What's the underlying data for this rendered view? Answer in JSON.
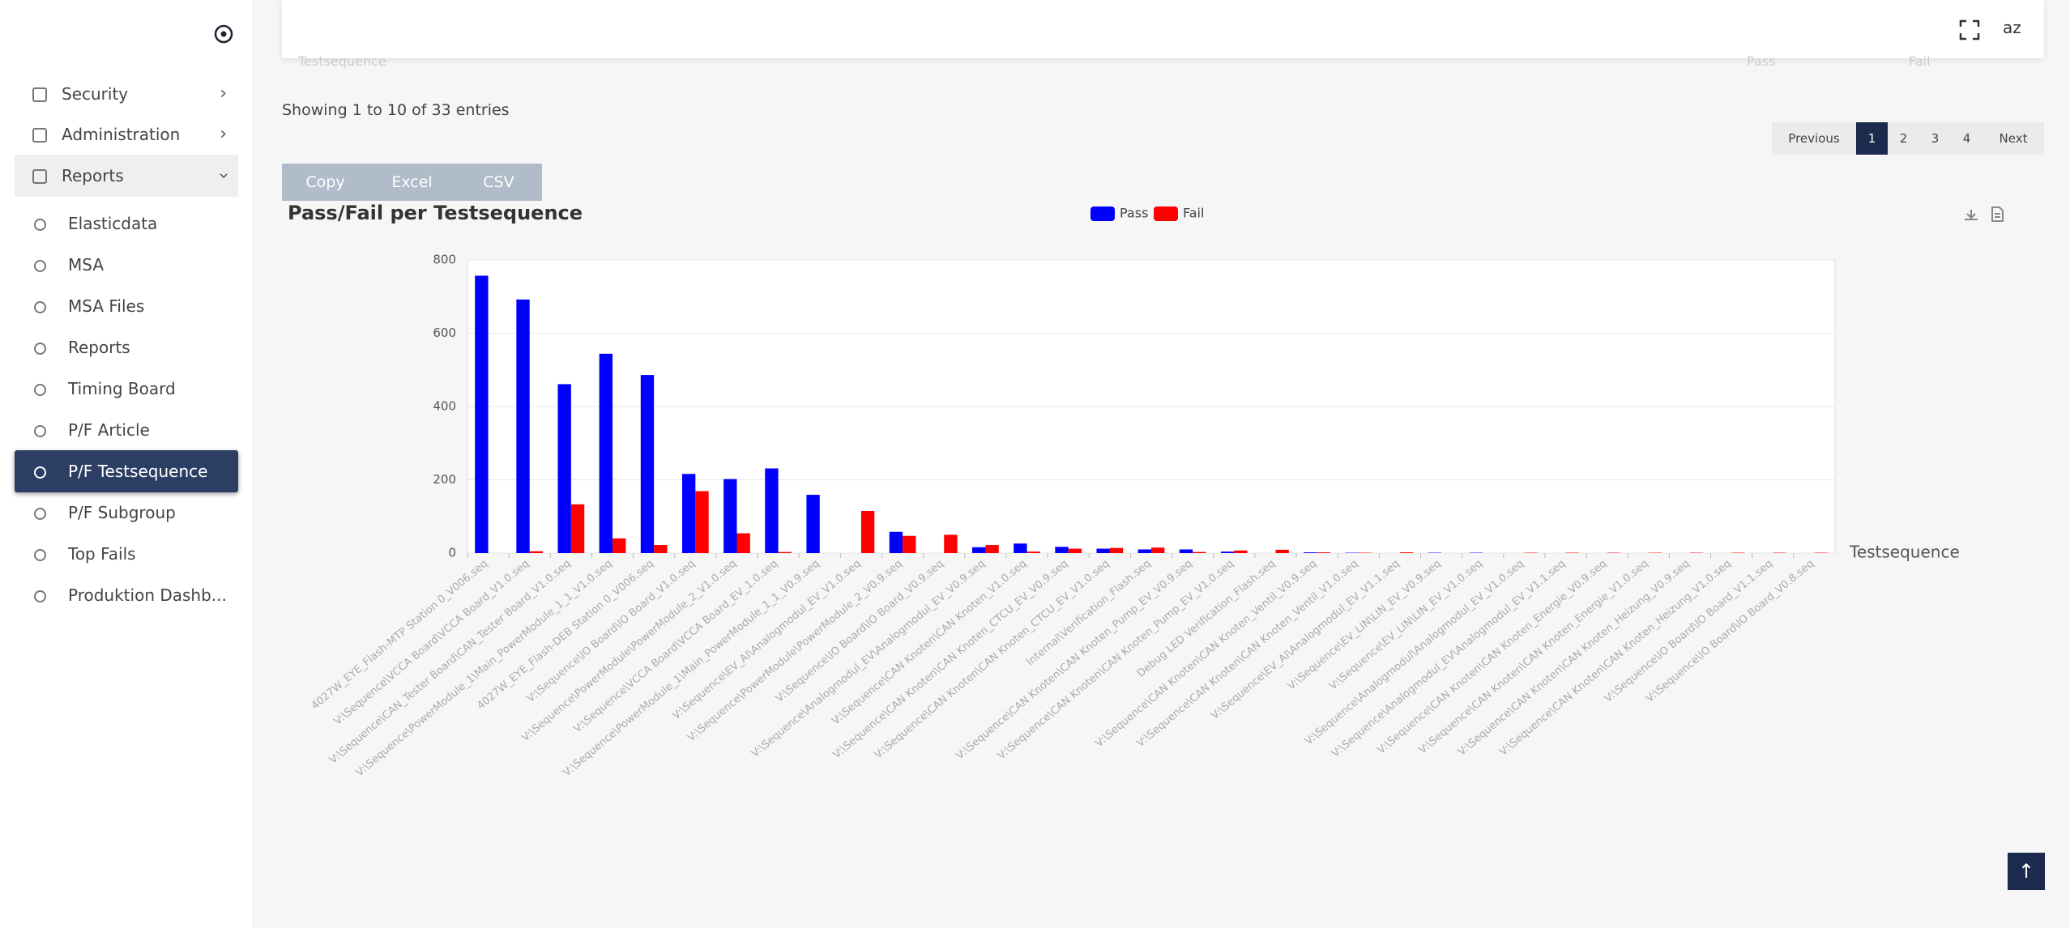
{
  "sidebar": {
    "items": [
      "Security",
      "Administration",
      "Reports"
    ],
    "subitems": [
      "Elasticdata",
      "MSA",
      "MSA Files",
      "Reports",
      "Timing Board",
      "P/F Article",
      "P/F Testsequence",
      "P/F Subgroup",
      "Top Fails",
      "Produktion Dashb..."
    ],
    "active": "P/F Testsequence"
  },
  "toolbar": {
    "lang": "az"
  },
  "table": {
    "columns": [
      "Testsequence",
      "Pass",
      "Fail"
    ],
    "info": "Showing 1 to 10 of 33 entries"
  },
  "pagination": {
    "previous": "Previous",
    "pages": [
      "1",
      "2",
      "3",
      "4"
    ],
    "next": "Next",
    "current": "1"
  },
  "buttons": [
    "Copy",
    "Excel",
    "CSV"
  ],
  "chart_data": {
    "type": "bar",
    "title": "Pass/Fail per Testsequence",
    "x_label": "Testsequence",
    "categories": [
      "4027W_EYE_Flash-MTP Station 0_V006.seq",
      "V:\\Sequence\\VCCA Board\\VCCA Board_V1.0.seq",
      "V:\\Sequence\\CAN_Tester Board\\CAN_Tester Board_V1.0.seq",
      "V:\\Sequence\\PowerModule_1\\Main_PowerModule_1_1_V1.0.seq",
      "4027W_EYE_Flash-DEB Station 0_V006.seq",
      "V:\\Sequence\\IO Board\\IO Board_V1.0.seq",
      "V:\\Sequence\\PowerModule\\PowerModule_2_V1.0.seq",
      "V:\\Sequence\\VCCA Board\\VCCA Board_EV_1.0.seq",
      "V:\\Sequence\\PowerModule_1\\Main_PowerModule_1_1_V0.9.seq",
      "V:\\Sequence\\EV_AI\\Analogmodul_EV_V1.0.seq",
      "V:\\Sequence\\PowerModule\\PowerModule_2_V0.9.seq",
      "V:\\Sequence\\IO Board\\IO Board_V0.9.seq",
      "V:\\Sequence\\Analogmodul_EV\\Analogmodul_EV_V0.9.seq",
      "V:\\Sequence\\CAN Knoten\\CAN Knoten_V1.0.seq",
      "V:\\Sequence\\CAN Knoten\\CAN Knoten_CTCU_EV_V0.9.seq",
      "V:\\Sequence\\CAN Knoten\\CAN Knoten_CTCU_EV_V1.0.seq",
      "Internal\\Verification_Flash.seq",
      "V:\\Sequence\\CAN Knoten\\CAN Knoten_Pump_EV_V0.9.seq",
      "V:\\Sequence\\CAN Knoten\\CAN Knoten_Pump_EV_V1.0.seq",
      "Debug LED Verification_Flash.seq",
      "V:\\Sequence\\CAN Knoten\\CAN Knoten_Ventil_V0.9.seq",
      "V:\\Sequence\\CAN Knoten\\CAN Knoten_Ventil_V1.0.seq",
      "V:\\Sequence\\EV_AI\\Analogmodul_EV_V1.1.seq",
      "V:\\Sequence\\EV_LIN\\LIN_EV_V0.9.seq",
      "V:\\Sequence\\EV_LIN\\LIN_EV_V1.0.seq",
      "V:\\Sequence\\Analogmodul\\Analogmodul_EV_V1.0.seq",
      "V:\\Sequence\\Analogmodul_EV\\Analogmodul_EV_V1.1.seq",
      "V:\\Sequence\\CAN Knoten\\CAN Knoten_Energie_V0.9.seq",
      "V:\\Sequence\\CAN Knoten\\CAN Knoten_Energie_V1.0.seq",
      "V:\\Sequence\\CAN Knoten\\CAN Knoten_Heizung_V0.9.seq",
      "V:\\Sequence\\CAN Knoten\\CAN Knoten_Heizung_V1.0.seq",
      "V:\\Sequence\\IO Board\\IO Board_V1.1.seq",
      "V:\\Sequence\\IO Board\\IO Board_V0.8.seq"
    ],
    "series": [
      {
        "name": "Pass",
        "color": "#0000ff",
        "values": [
          757,
          692,
          461,
          544,
          486,
          216,
          202,
          231,
          159,
          0,
          58,
          0,
          16,
          26,
          17,
          12,
          10,
          10,
          4,
          0,
          2,
          1,
          0,
          1,
          1,
          0,
          0,
          0,
          0,
          0,
          0,
          0,
          0
        ]
      },
      {
        "name": "Fail",
        "color": "#ff0000",
        "values": [
          0,
          5,
          133,
          40,
          22,
          169,
          54,
          3,
          0,
          115,
          47,
          50,
          22,
          4,
          12,
          14,
          15,
          3,
          7,
          9,
          2,
          1,
          2,
          0,
          0,
          1,
          1,
          1,
          1,
          1,
          1,
          1,
          1
        ]
      }
    ],
    "ylim": [
      0,
      800
    ],
    "yticks": [
      0,
      200,
      400,
      600,
      800
    ],
    "grid": true
  }
}
